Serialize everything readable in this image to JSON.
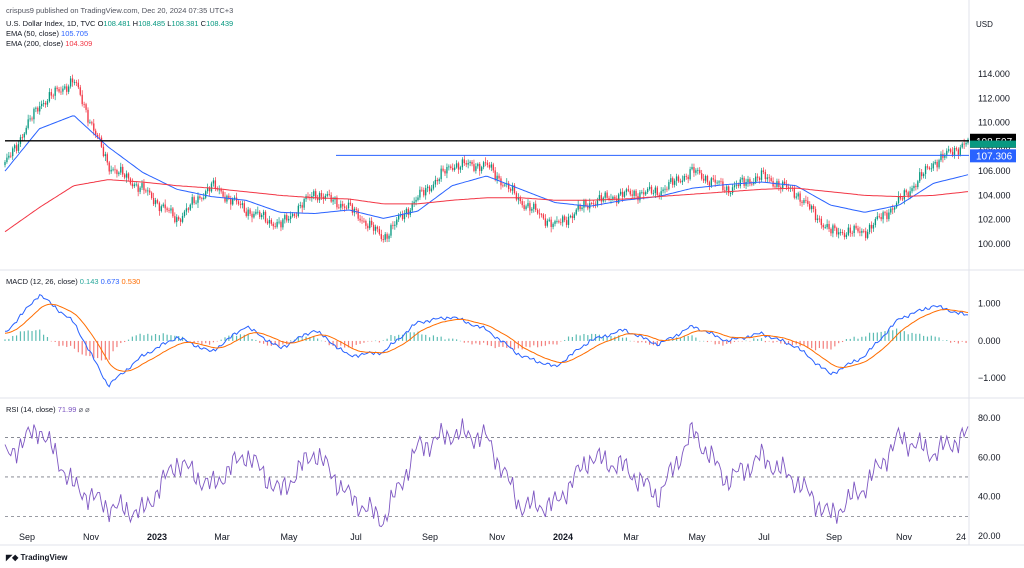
{
  "publisher": "crispus9 published on TradingView.com, Dec 20, 2024 07:35 UTC+3",
  "symbol": {
    "title": "U.S. Dollar Index, 1D, TVC",
    "o_label": "O",
    "o": "108.481",
    "h_label": "H",
    "h": "108.485",
    "l_label": "L",
    "l": "108.381",
    "c_label": "C",
    "c": "108.439"
  },
  "ema50": {
    "label": "EMA (50, close)",
    "value": "105.705",
    "color": "#2962ff"
  },
  "ema200": {
    "label": "EMA (200, close)",
    "value": "104.309",
    "color": "#f23645"
  },
  "currency": "USD",
  "price_axis": {
    "ticks": [
      "114.000",
      "112.000",
      "110.000",
      "108.000",
      "106.000",
      "104.000",
      "102.000",
      "100.000"
    ],
    "min": 98.5,
    "max": 116
  },
  "lines": {
    "resistance": "108.507",
    "horizontal": "107.306"
  },
  "macd": {
    "label": "MACD (12, 26, close)",
    "v1": "0.143",
    "v2": "0.673",
    "v3": "0.530",
    "ticks": [
      "1.000",
      "0.000",
      "−1.000"
    ],
    "colors": {
      "hist_up": "#26a69a",
      "hist_down": "#ef5350",
      "macd": "#2962ff",
      "signal": "#ff6d00"
    }
  },
  "rsi": {
    "label": "RSI (14, close)",
    "value": "71.99",
    "ticks": [
      "80.00",
      "60.00",
      "40.00",
      "20.00"
    ],
    "color": "#7e57c2",
    "levels": [
      70,
      50,
      30
    ]
  },
  "time_axis": [
    "Sep",
    "Nov",
    "2023",
    "Mar",
    "May",
    "Jul",
    "Sep",
    "Nov",
    "2024",
    "Mar",
    "May",
    "Jul",
    "Sep",
    "Nov",
    "24"
  ],
  "logo": "TradingView",
  "chart_data": {
    "type": "candlestick",
    "title": "U.S. Dollar Index, 1D, TVC",
    "ylabel": "USD",
    "ylim": [
      98.5,
      116
    ],
    "x": [
      "2022-08",
      "2022-09",
      "2022-10",
      "2022-11",
      "2022-12",
      "2023-01",
      "2023-02",
      "2023-03",
      "2023-04",
      "2023-05",
      "2023-06",
      "2023-07",
      "2023-08",
      "2023-09",
      "2023-10",
      "2023-11",
      "2023-12",
      "2024-01",
      "2024-02",
      "2024-03",
      "2024-04",
      "2024-05",
      "2024-06",
      "2024-07",
      "2024-08",
      "2024-09",
      "2024-10",
      "2024-11",
      "2024-12"
    ],
    "price_path": [
      106.5,
      111.5,
      113.5,
      106.5,
      104.5,
      102.0,
      104.8,
      102.8,
      101.5,
      104.2,
      103.0,
      100.5,
      103.8,
      106.5,
      106.5,
      103.5,
      101.5,
      103.4,
      104.1,
      104.3,
      106.0,
      104.5,
      105.6,
      104.2,
      101.0,
      101.0,
      103.5,
      106.7,
      108.44
    ],
    "series": [
      {
        "name": "EMA (50, close)",
        "values": [
          106.0,
          109.5,
          110.6,
          108.0,
          105.9,
          104.5,
          103.9,
          103.6,
          102.6,
          102.5,
          102.8,
          102.1,
          102.7,
          104.8,
          105.6,
          104.5,
          103.4,
          103.1,
          103.6,
          103.9,
          104.6,
          104.9,
          105.1,
          104.8,
          103.2,
          102.6,
          103.2,
          105.0,
          105.705
        ]
      },
      {
        "name": "EMA (200, close)",
        "values": [
          101.0,
          103.0,
          104.8,
          105.3,
          105.1,
          104.8,
          104.6,
          104.3,
          104.0,
          103.8,
          103.7,
          103.3,
          103.3,
          103.6,
          103.8,
          103.8,
          103.6,
          103.6,
          103.7,
          103.9,
          104.1,
          104.3,
          104.5,
          104.6,
          104.3,
          104.0,
          103.9,
          104.0,
          104.309
        ]
      }
    ],
    "macd_path": [
      0.2,
      1.25,
      0.5,
      -1.2,
      -0.4,
      0.1,
      -0.3,
      0.4,
      -0.2,
      0.3,
      -0.4,
      -0.3,
      0.5,
      0.65,
      0.3,
      -0.4,
      -0.7,
      0.0,
      0.3,
      -0.1,
      0.4,
      0.0,
      0.2,
      -0.15,
      -0.9,
      -0.4,
      0.6,
      0.95,
      0.673
    ],
    "rsi_path": [
      60,
      75,
      45,
      35,
      32,
      58,
      45,
      62,
      42,
      63,
      40,
      28,
      65,
      72,
      70,
      35,
      36,
      60,
      55,
      40,
      73,
      48,
      60,
      48,
      30,
      45,
      70,
      62,
      71.99
    ]
  }
}
